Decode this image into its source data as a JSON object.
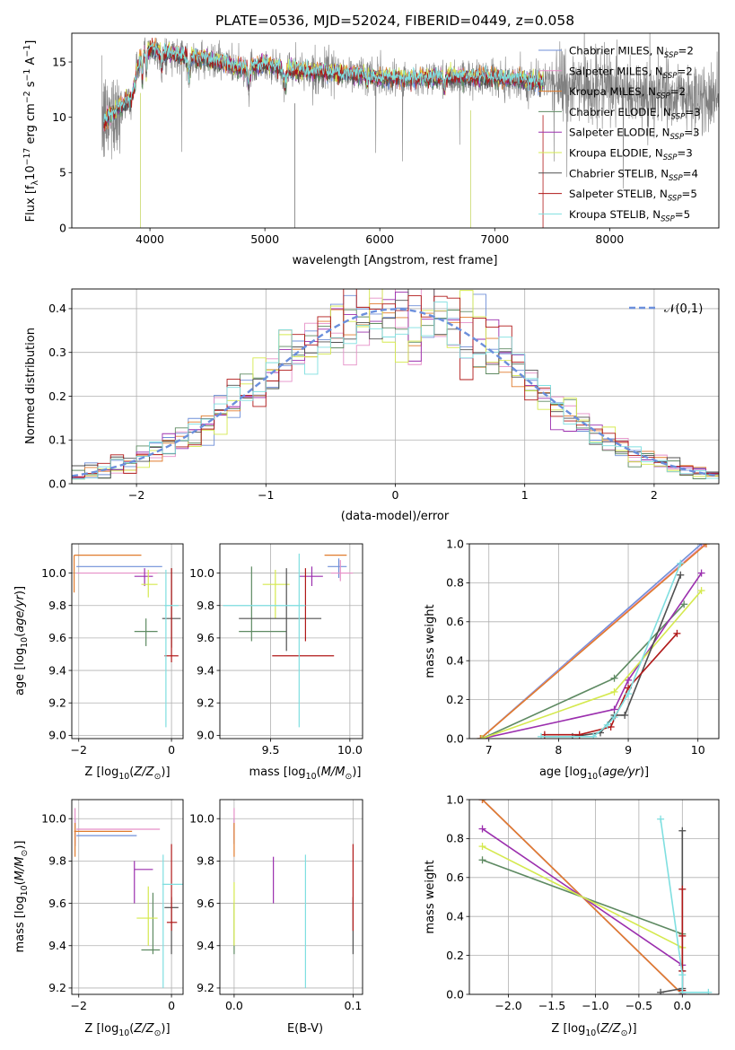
{
  "figure_title": "PLATE=0536, MJD=52024, FIBERID=0449, z=0.058",
  "palette": {
    "Chabrier MILES": "#6f8fd8",
    "Salpeter MILES": "#e58fc7",
    "Kroupa MILES": "#e07b2c",
    "Chabrier ELODIE": "#5e8a62",
    "Salpeter ELODIE": "#9b2fae",
    "Kroupa ELODIE": "#d5e94e",
    "Chabrier STELIB": "#505050",
    "Salpeter STELIB": "#b01818",
    "Kroupa STELIB": "#7fdfe0",
    "data": "#808080",
    "gaussian": "#6b8fdc"
  },
  "legend_spectrum": [
    {
      "model": "Chabrier MILES",
      "n": "2"
    },
    {
      "model": "Salpeter MILES",
      "n": "2"
    },
    {
      "model": "Kroupa MILES",
      "n": "2"
    },
    {
      "model": "Chabrier ELODIE",
      "n": "3"
    },
    {
      "model": "Salpeter ELODIE",
      "n": "3"
    },
    {
      "model": "Kroupa ELODIE",
      "n": "3"
    },
    {
      "model": "Chabrier STELIB",
      "n": "4"
    },
    {
      "model": "Salpeter STELIB",
      "n": "5"
    },
    {
      "model": "Kroupa STELIB",
      "n": "5"
    }
  ],
  "chart_data": [
    {
      "id": "spectrum",
      "type": "line",
      "xlabel": "wavelength [Angstrom, rest frame]",
      "ylabel": "Flux [f_λ 10^-17 erg cm^-2 s^-1 A^-1]",
      "xlim": [
        3320,
        8950
      ],
      "ylim": [
        0,
        17.6
      ],
      "xticks": [
        4000,
        5000,
        6000,
        7000,
        8000
      ],
      "yticks": [
        0,
        5,
        10,
        15
      ],
      "grid": false,
      "legend": "right",
      "continuum_knots": {
        "x": [
          3600,
          3700,
          3800,
          3850,
          3900,
          3950,
          4000,
          4100,
          4200,
          4400,
          4600,
          4800,
          5000,
          5200,
          5500,
          5800,
          6000,
          6300,
          6600,
          6900,
          7100,
          7300,
          7420
        ],
        "y": [
          9.5,
          10.6,
          11.4,
          12.0,
          14.8,
          15.9,
          16.2,
          15.9,
          15.7,
          15.4,
          15.1,
          14.4,
          14.8,
          14.3,
          14.1,
          13.9,
          13.6,
          13.5,
          13.7,
          13.6,
          13.5,
          13.3,
          13.2
        ]
      },
      "data_range": [
        3580,
        8950
      ],
      "model_range": [
        3600,
        7420
      ]
    },
    {
      "id": "residuals",
      "type": "line",
      "xlabel": "(data-model)/error",
      "ylabel": "Normed distribution",
      "xlim": [
        -2.5,
        2.5
      ],
      "ylim": [
        0,
        0.445
      ],
      "xticks": [
        -2,
        -1,
        0,
        1,
        2
      ],
      "yticks": [
        0.0,
        0.1,
        0.2,
        0.3,
        0.4
      ],
      "grid": true,
      "legend": "top-right",
      "gaussian": {
        "name": "𝒩(0,1)",
        "mean": 0,
        "sigma": 1
      },
      "bin_width": 0.1
    },
    {
      "id": "age_vs_Z",
      "type": "scatter",
      "xlabel": "Z [log10(Z/Z⊙)]",
      "ylabel": "age [log10(age/yr)]",
      "xlim": [
        -2.15,
        0.25
      ],
      "ylim": [
        8.98,
        10.18
      ],
      "xticks": [
        -2,
        0
      ],
      "yticks": [
        9.0,
        9.2,
        9.4,
        9.6,
        9.8,
        10.0
      ],
      "grid": true,
      "points": [
        {
          "model": "Chabrier MILES",
          "x": [
            -2.05,
            -0.2
          ],
          "y": [
            10.04,
            10.04
          ]
        },
        {
          "model": "Salpeter MILES",
          "x": [
            -2.05,
            -0.3
          ],
          "y": [
            10.0,
            10.0
          ]
        },
        {
          "model": "Kroupa MILES",
          "x": [
            -2.1,
            -0.65
          ],
          "y": [
            10.11,
            10.11
          ],
          "vy": [
            9.88,
            10.11
          ]
        },
        {
          "model": "Chabrier ELODIE",
          "x": [
            -0.8,
            -0.3
          ],
          "y": [
            9.64,
            9.64
          ],
          "vx": -0.55,
          "vy2": [
            9.55,
            9.72
          ]
        },
        {
          "model": "Salpeter ELODIE",
          "x": [
            -0.8,
            -0.4
          ],
          "y": [
            9.98,
            9.98
          ],
          "vx": -0.58,
          "vy2": [
            9.92,
            10.03
          ]
        },
        {
          "model": "Kroupa ELODIE",
          "x": [
            -0.65,
            -0.3
          ],
          "y": [
            9.93,
            9.93
          ],
          "vx": -0.5,
          "vy2": [
            9.85,
            10.02
          ]
        },
        {
          "model": "Chabrier STELIB",
          "x": [
            -0.2,
            0.2
          ],
          "y": [
            9.72,
            9.72
          ],
          "vx": 0.0,
          "vy2": [
            9.54,
            10.03
          ]
        },
        {
          "model": "Salpeter STELIB",
          "x": [
            -0.15,
            0.15
          ],
          "y": [
            9.49,
            9.49
          ],
          "vx": 0.0,
          "vy2": [
            9.45,
            10.03
          ]
        },
        {
          "model": "Kroupa STELIB",
          "x": [
            -0.15,
            0.15
          ],
          "y": [
            9.8,
            9.8
          ],
          "vx": -0.12,
          "vy2": [
            9.05,
            10.02
          ]
        }
      ]
    },
    {
      "id": "age_vs_mass",
      "type": "scatter",
      "xlabel": "mass [log10(M/M⊙)]",
      "ylabel": "",
      "xlim": [
        9.18,
        10.08
      ],
      "ylim": [
        8.98,
        10.18
      ],
      "xticks": [
        9.5,
        10.0
      ],
      "yticks": [
        9.0,
        9.2,
        9.4,
        9.6,
        9.8,
        10.0
      ],
      "grid": true,
      "points": [
        {
          "model": "Chabrier MILES",
          "x": [
            9.86,
            9.98
          ],
          "y": [
            10.04,
            10.04
          ],
          "vx": 9.93,
          "vy2": [
            9.97,
            10.09
          ]
        },
        {
          "model": "Salpeter MILES",
          "x": [
            9.88,
            10.02
          ],
          "y": [
            10.0,
            10.0
          ],
          "vx": 9.94,
          "vy2": [
            9.95,
            10.08
          ]
        },
        {
          "model": "Kroupa MILES",
          "x": [
            9.84,
            9.98
          ],
          "y": [
            10.11,
            10.11
          ]
        },
        {
          "model": "Chabrier ELODIE",
          "x": [
            9.3,
            9.6
          ],
          "y": [
            9.64,
            9.64
          ],
          "vx": 9.38,
          "vy2": [
            9.58,
            10.04
          ]
        },
        {
          "model": "Salpeter ELODIE",
          "x": [
            9.68,
            9.83
          ],
          "y": [
            9.98,
            9.98
          ],
          "vx": 9.76,
          "vy2": [
            9.92,
            10.04
          ]
        },
        {
          "model": "Kroupa ELODIE",
          "x": [
            9.45,
            9.62
          ],
          "y": [
            9.93,
            9.93
          ],
          "vx": 9.53,
          "vy2": [
            9.72,
            10.02
          ]
        },
        {
          "model": "Chabrier STELIB",
          "x": [
            9.3,
            9.82
          ],
          "y": [
            9.72,
            9.72
          ],
          "vx": 9.6,
          "vy2": [
            9.52,
            10.03
          ]
        },
        {
          "model": "Salpeter STELIB",
          "x": [
            9.51,
            9.9
          ],
          "y": [
            9.49,
            9.49
          ],
          "vx": 9.72,
          "vy2": [
            9.58,
            10.03
          ]
        },
        {
          "model": "Kroupa STELIB",
          "x": [
            9.2,
            9.72
          ],
          "y": [
            9.8,
            9.8
          ],
          "vx": 9.68,
          "vy2": [
            9.05,
            10.12
          ]
        }
      ]
    },
    {
      "id": "weight_vs_age",
      "type": "line",
      "xlabel": "age [log10(age/yr)]",
      "ylabel": "mass weight",
      "xlim": [
        6.72,
        10.3
      ],
      "ylim": [
        0,
        1.0
      ],
      "xticks": [
        7,
        8,
        9,
        10
      ],
      "yticks": [
        0.0,
        0.2,
        0.4,
        0.6,
        0.8,
        1.0
      ],
      "grid": true,
      "series": [
        {
          "model": "Chabrier MILES",
          "x": [
            6.88,
            10.05
          ],
          "y": [
            0.0,
            1.0
          ]
        },
        {
          "model": "Salpeter MILES",
          "x": [
            6.88,
            10.1
          ],
          "y": [
            0.0,
            1.0
          ]
        },
        {
          "model": "Kroupa MILES",
          "x": [
            6.88,
            10.12
          ],
          "y": [
            0.0,
            1.0
          ]
        },
        {
          "model": "Chabrier ELODIE",
          "x": [
            6.9,
            8.8,
            9.8
          ],
          "y": [
            0.0,
            0.31,
            0.69
          ]
        },
        {
          "model": "Salpeter ELODIE",
          "x": [
            6.9,
            8.8,
            9.0,
            10.05
          ],
          "y": [
            0.0,
            0.15,
            0.3,
            0.85
          ]
        },
        {
          "model": "Kroupa ELODIE",
          "x": [
            6.9,
            8.8,
            10.05
          ],
          "y": [
            0.0,
            0.24,
            0.76
          ]
        },
        {
          "model": "Chabrier STELIB",
          "x": [
            7.8,
            8.2,
            8.6,
            8.8,
            8.95,
            9.75
          ],
          "y": [
            0.01,
            0.01,
            0.03,
            0.12,
            0.12,
            0.84
          ]
        },
        {
          "model": "Salpeter STELIB",
          "x": [
            7.8,
            8.3,
            8.75,
            9.0,
            9.7
          ],
          "y": [
            0.02,
            0.02,
            0.06,
            0.26,
            0.54
          ]
        },
        {
          "model": "Kroupa STELIB",
          "x": [
            7.75,
            8.5,
            8.7,
            8.8,
            9.0,
            9.75
          ],
          "y": [
            0.01,
            0.01,
            0.07,
            0.11,
            0.23,
            0.9
          ]
        }
      ]
    },
    {
      "id": "mass_vs_Z",
      "type": "scatter",
      "xlabel": "Z [log10(Z/Z⊙)]",
      "ylabel": "mass [log10(M/M⊙)]",
      "xlim": [
        -2.15,
        0.25
      ],
      "ylim": [
        9.17,
        10.09
      ],
      "xticks": [
        -2,
        0
      ],
      "yticks": [
        9.2,
        9.4,
        9.6,
        9.8,
        10.0
      ],
      "grid": true,
      "points": [
        {
          "model": "Chabrier MILES",
          "x": [
            -2.05,
            -0.75
          ],
          "y": [
            9.92,
            9.92
          ],
          "vx": -2.08,
          "vy2": [
            9.87,
            10.0
          ]
        },
        {
          "model": "Salpeter MILES",
          "x": [
            -2.05,
            -0.25
          ],
          "y": [
            9.95,
            9.95
          ],
          "vx": -2.08,
          "vy2": [
            9.88,
            10.05
          ]
        },
        {
          "model": "Kroupa MILES",
          "x": [
            -2.1,
            -0.85
          ],
          "y": [
            9.94,
            9.94
          ],
          "vx": -2.08,
          "vy2": [
            9.82,
            9.98
          ]
        },
        {
          "model": "Chabrier ELODIE",
          "x": [
            -0.65,
            -0.25
          ],
          "y": [
            9.38,
            9.38
          ],
          "vx": -0.4,
          "vy2": [
            9.36,
            9.65
          ]
        },
        {
          "model": "Salpeter ELODIE",
          "x": [
            -0.8,
            -0.4
          ],
          "y": [
            9.76,
            9.76
          ],
          "vx": -0.8,
          "vy2": [
            9.6,
            9.8
          ]
        },
        {
          "model": "Kroupa ELODIE",
          "x": [
            -0.75,
            -0.3
          ],
          "y": [
            9.53,
            9.53
          ],
          "vx": -0.5,
          "vy2": [
            9.4,
            9.68
          ]
        },
        {
          "model": "Chabrier STELIB",
          "x": [
            -0.15,
            0.15
          ],
          "y": [
            9.58,
            9.58
          ],
          "vx": 0.0,
          "vy2": [
            9.36,
            9.63
          ]
        },
        {
          "model": "Salpeter STELIB",
          "x": [
            -0.1,
            0.12
          ],
          "y": [
            9.51,
            9.51
          ],
          "vx": 0.0,
          "vy2": [
            9.47,
            9.88
          ]
        },
        {
          "model": "Kroupa STELIB",
          "x": [
            -0.2,
            0.25
          ],
          "y": [
            9.69,
            9.69
          ],
          "vx": -0.18,
          "vy2": [
            9.2,
            9.83
          ]
        }
      ]
    },
    {
      "id": "mass_vs_EBV",
      "type": "scatter",
      "xlabel": "E(B-V)",
      "ylabel": "",
      "xlim": [
        -0.012,
        0.108
      ],
      "ylim": [
        9.17,
        10.09
      ],
      "xticks": [
        0.0,
        0.1
      ],
      "yticks": [
        9.2,
        9.4,
        9.6,
        9.8,
        10.0
      ],
      "grid": true,
      "points": [
        {
          "model": "Chabrier MILES",
          "vx": 0.0,
          "vy2": [
            9.88,
            10.0
          ]
        },
        {
          "model": "Salpeter MILES",
          "vx": 0.0,
          "vy2": [
            9.9,
            10.05
          ]
        },
        {
          "model": "Kroupa MILES",
          "vx": 0.0,
          "vy2": [
            9.82,
            9.98
          ]
        },
        {
          "model": "Chabrier ELODIE",
          "vx": 0.0,
          "vy2": [
            9.36,
            9.6
          ]
        },
        {
          "model": "Salpeter ELODIE",
          "vx": 0.033,
          "vy2": [
            9.6,
            9.82
          ]
        },
        {
          "model": "Kroupa ELODIE",
          "vx": 0.0,
          "vy2": [
            9.4,
            9.7
          ]
        },
        {
          "model": "Chabrier STELIB",
          "vx": 0.1,
          "vy2": [
            9.36,
            9.63
          ]
        },
        {
          "model": "Salpeter STELIB",
          "vx": 0.1,
          "vy2": [
            9.47,
            9.88
          ]
        },
        {
          "model": "Kroupa STELIB",
          "vx": 0.06,
          "vy2": [
            9.2,
            9.83
          ]
        }
      ]
    },
    {
      "id": "weight_vs_Z",
      "type": "line",
      "xlabel": "Z [log10(Z/Z⊙)]",
      "ylabel": "mass weight",
      "xlim": [
        -2.45,
        0.42
      ],
      "ylim": [
        0,
        1.0
      ],
      "xticks": [
        -2.0,
        -1.5,
        -1.0,
        -0.5,
        0.0
      ],
      "yticks": [
        0.0,
        0.2,
        0.4,
        0.6,
        0.8,
        1.0
      ],
      "grid": true,
      "series": [
        {
          "model": "Chabrier MILES",
          "x": [
            -2.3,
            0.0
          ],
          "y": [
            1.0,
            0.0
          ]
        },
        {
          "model": "Salpeter MILES",
          "x": [
            -2.3,
            0.0
          ],
          "y": [
            1.0,
            0.0
          ]
        },
        {
          "model": "Kroupa MILES",
          "x": [
            -2.3,
            0.0
          ],
          "y": [
            1.0,
            0.0
          ]
        },
        {
          "model": "Chabrier ELODIE",
          "x": [
            -2.3,
            0.0
          ],
          "y": [
            0.69,
            0.31
          ]
        },
        {
          "model": "Salpeter ELODIE",
          "x": [
            -2.3,
            0.0,
            0.0
          ],
          "y": [
            0.85,
            0.15,
            0.0
          ]
        },
        {
          "model": "Kroupa ELODIE",
          "x": [
            -2.3,
            0.0
          ],
          "y": [
            0.76,
            0.24
          ]
        },
        {
          "model": "Chabrier STELIB",
          "x": [
            0.0,
            0.0,
            0.0,
            -0.25
          ],
          "y": [
            0.84,
            0.12,
            0.03,
            0.01
          ]
        },
        {
          "model": "Salpeter STELIB",
          "x": [
            0.0,
            0.0,
            0.0,
            0.0
          ],
          "y": [
            0.54,
            0.3,
            0.12,
            0.02
          ]
        },
        {
          "model": "Kroupa STELIB",
          "x": [
            -0.25,
            0.0,
            0.0,
            0.3
          ],
          "y": [
            0.9,
            0.1,
            0.01,
            0.01
          ]
        }
      ]
    }
  ]
}
